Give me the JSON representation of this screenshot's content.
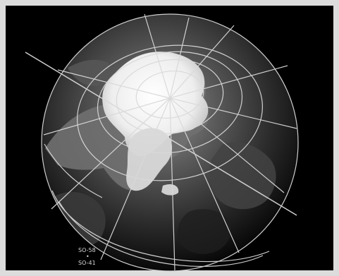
{
  "image": {
    "subject": "globe-with-grid",
    "labels": {
      "top": "SO-58",
      "dot": "•",
      "bottom": "SO-41"
    }
  },
  "colors": {
    "background": "#000000",
    "frame": "#dcdcdc",
    "grid": "#d9d9d9",
    "ice": "#f2f2f2",
    "land": "#6f6f6f",
    "ocean": "#1d1d1d"
  }
}
